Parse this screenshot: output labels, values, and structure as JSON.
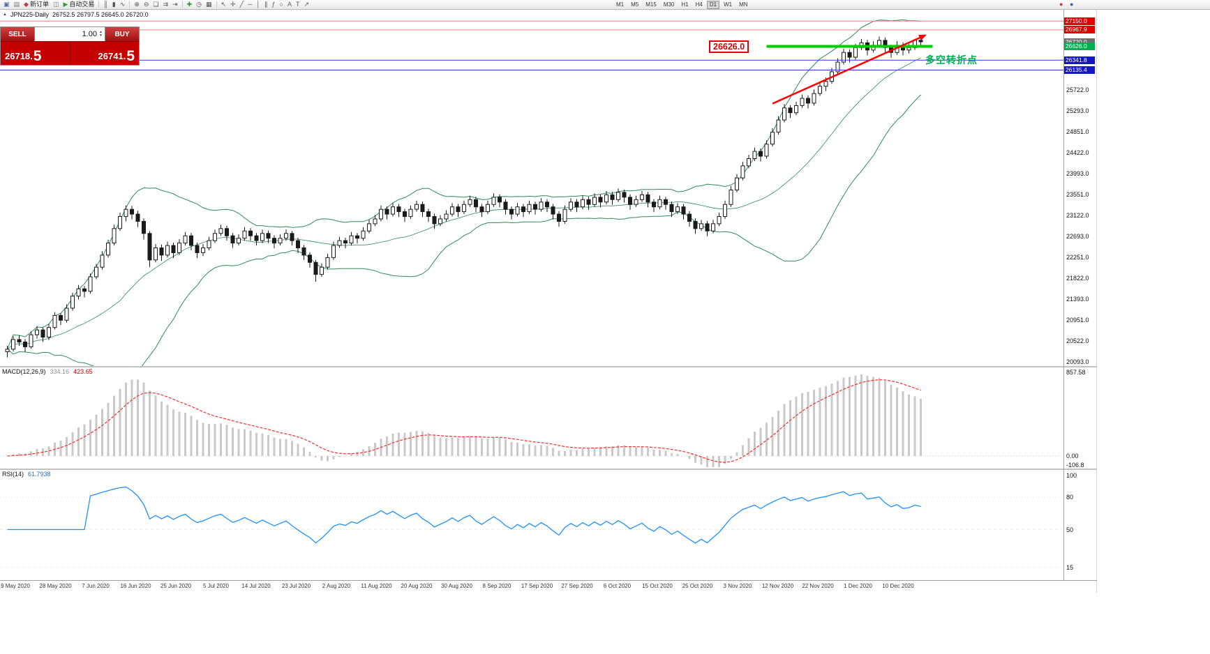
{
  "toolbar": {
    "items": [
      {
        "name": "new-chart-icon",
        "glyph": "▣",
        "color": "#4a6fa5"
      },
      {
        "name": "profiles-icon",
        "glyph": "▤",
        "color": "#777777"
      },
      {
        "name": "new-order-button",
        "glyph": "◆",
        "color": "#cc3333",
        "label": "新订单"
      },
      {
        "name": "charts-group-icon",
        "glyph": "◫",
        "color": "#777777"
      },
      {
        "name": "auto-trading-button",
        "glyph": "▶",
        "color": "#2ea02e",
        "label": "自动交易"
      },
      {
        "name": "separator"
      },
      {
        "name": "bar-chart-icon",
        "glyph": "║",
        "color": "#555555"
      },
      {
        "name": "candlestick-chart-icon",
        "glyph": "▮",
        "color": "#555555"
      },
      {
        "name": "line-chart-icon",
        "glyph": "∿",
        "color": "#555555"
      },
      {
        "name": "separator"
      },
      {
        "name": "zoom-in-icon",
        "glyph": "⊕",
        "color": "#555555"
      },
      {
        "name": "zoom-out-icon",
        "glyph": "⊖",
        "color": "#555555"
      },
      {
        "name": "tile-windows-icon",
        "glyph": "❏",
        "color": "#555555"
      },
      {
        "name": "auto-scroll-icon",
        "glyph": "⇉",
        "color": "#555555"
      },
      {
        "name": "chart-shift-icon",
        "glyph": "⇥",
        "color": "#555555"
      },
      {
        "name": "separator"
      },
      {
        "name": "indicators-icon",
        "glyph": "✚",
        "color": "#1c9e1c"
      },
      {
        "name": "periods-icon",
        "glyph": "◷",
        "color": "#555555"
      },
      {
        "name": "templates-icon",
        "glyph": "▦",
        "color": "#555555"
      },
      {
        "name": "separator"
      },
      {
        "name": "cursor-icon",
        "glyph": "↖",
        "color": "#555555"
      },
      {
        "name": "crosshair-icon",
        "glyph": "✛",
        "color": "#555555"
      },
      {
        "name": "trendline-icon",
        "glyph": "╱",
        "color": "#555555"
      },
      {
        "name": "horizontal-line-icon",
        "glyph": "─",
        "color": "#555555"
      },
      {
        "name": "vertical-line-icon",
        "glyph": "│",
        "color": "#555555"
      },
      {
        "name": "equidistant-channel-icon",
        "glyph": "∥",
        "color": "#555555"
      },
      {
        "name": "fibonacci-icon",
        "glyph": "ƒ",
        "color": "#555555"
      },
      {
        "name": "shapes-icon",
        "glyph": "○",
        "color": "#555555"
      },
      {
        "name": "text-icon",
        "glyph": "A",
        "color": "#555555"
      },
      {
        "name": "text-label-icon",
        "glyph": "T",
        "color": "#555555"
      },
      {
        "name": "arrows-tool-icon",
        "glyph": "↗",
        "color": "#555555"
      }
    ],
    "timeframes": [
      "M1",
      "M5",
      "M15",
      "M30",
      "H1",
      "H4",
      "D1",
      "W1",
      "MN"
    ],
    "active_timeframe": "D1",
    "right_icons": [
      {
        "name": "connection-status-icon",
        "glyph": "●",
        "color": "#d83434"
      },
      {
        "name": "news-indicator-icon",
        "glyph": "●",
        "color": "#3a5bd0"
      }
    ]
  },
  "trade_panel": {
    "sell_label": "SELL",
    "buy_label": "BUY",
    "volume": "1.00",
    "sell_price_base": "26718.",
    "sell_price_last": "5",
    "buy_price_base": "26741.",
    "buy_price_last": "5"
  },
  "chart": {
    "symbol_title": "JPN225-Daily",
    "ohlc": "26752.5 26797.5 26645.0 26720.0",
    "annotation_price": "26626.0",
    "annotation_text": "多空转折点",
    "price_axis": [
      "25722.0",
      "25293.0",
      "24851.0",
      "24422.0",
      "23993.0",
      "23551.0",
      "23122.0",
      "22693.0",
      "22251.0",
      "21822.0",
      "21393.0",
      "20951.0",
      "20522.0",
      "20093.0"
    ],
    "price_tags": [
      {
        "text": "27150.0",
        "price": 27150.0,
        "bg": "#e00000"
      },
      {
        "text": "26967.9",
        "price": 26967.9,
        "bg": "#e00000"
      },
      {
        "text": "26720.0",
        "price": 26720.0,
        "bg": "#6e6e6e"
      },
      {
        "text": "26626.0",
        "price": 26626.0,
        "bg": "#00b050"
      },
      {
        "text": "26341.8",
        "price": 26341.8,
        "bg": "#1515c8"
      },
      {
        "text": "26135.4",
        "price": 26135.4,
        "bg": "#1515c8"
      }
    ],
    "date_axis": [
      "9 May 2020",
      "28 May 2020",
      "7 Jun 2020",
      "16 Jun 2020",
      "25 Jun 2020",
      "5 Jul 2020",
      "14 Jul 2020",
      "23 Jul 2020",
      "2 Aug 2020",
      "11 Aug 2020",
      "20 Aug 2020",
      "30 Aug 2020",
      "8 Sep 2020",
      "17 Sep 2020",
      "27 Sep 2020",
      "6 Oct 2020",
      "15 Oct 2020",
      "25 Oct 2020",
      "3 Nov 2020",
      "12 Nov 2020",
      "22 Nov 2020",
      "1 Dec 2020",
      "10 Dec 2020"
    ]
  },
  "macd": {
    "label": "MACD(12,26,9)",
    "value1": "334.16",
    "value2": "423.65",
    "axis": [
      "857.58",
      "0.00",
      "-106.8"
    ]
  },
  "rsi": {
    "label": "RSI(14)",
    "value": "61.7938",
    "axis": [
      "100",
      "80",
      "50",
      "15"
    ],
    "axis_values": [
      100,
      80,
      50,
      15
    ]
  },
  "chart_data": {
    "type": "candlestick",
    "symbol": "JPN225",
    "timeframe": "Daily",
    "ohlc_last": {
      "open": 26752.5,
      "high": 26797.5,
      "low": 26645.0,
      "close": 26720.0
    },
    "price_range_visible": [
      20093.0,
      27385.0
    ],
    "indicators": {
      "bollinger_period": 20,
      "bollinger_deviation": 2,
      "macd_fast": 12,
      "macd_slow": 26,
      "macd_signal": 9,
      "macd_current": [
        334.16,
        423.65
      ],
      "rsi_period": 14,
      "rsi_current": 61.7938
    },
    "overlays": {
      "horizontal_lines": [
        {
          "price": 27150.0,
          "color": "#f08080",
          "width": 1
        },
        {
          "price": 26967.9,
          "color": "#f08080",
          "width": 1
        },
        {
          "price": 26341.8,
          "color": "#3333e6",
          "width": 1
        },
        {
          "price": 26135.4,
          "color": "#3333e6",
          "width": 1
        }
      ],
      "support_level": {
        "price": 26626.0,
        "color": "#00cc00",
        "width": 4,
        "from_bar": 128,
        "to_bar": 156
      },
      "trend_arrow": {
        "color": "#ff0000",
        "from": {
          "bar": 129,
          "price": 25440
        },
        "to": {
          "bar": 155,
          "price": 26870
        }
      }
    },
    "candles": [
      [
        20300,
        20420,
        20180,
        20350
      ],
      [
        20350,
        20620,
        20300,
        20550
      ],
      [
        20550,
        20640,
        20420,
        20500
      ],
      [
        20500,
        20560,
        20290,
        20400
      ],
      [
        20400,
        20720,
        20360,
        20650
      ],
      [
        20650,
        20830,
        20570,
        20750
      ],
      [
        20750,
        20800,
        20500,
        20600
      ],
      [
        20600,
        20880,
        20540,
        20800
      ],
      [
        20800,
        21120,
        20760,
        21050
      ],
      [
        21050,
        21100,
        20850,
        20950
      ],
      [
        20950,
        21280,
        20900,
        21200
      ],
      [
        21200,
        21520,
        21150,
        21450
      ],
      [
        21450,
        21680,
        21380,
        21600
      ],
      [
        21600,
        21660,
        21420,
        21550
      ],
      [
        21550,
        21920,
        21500,
        21850
      ],
      [
        21850,
        22120,
        21800,
        22050
      ],
      [
        22050,
        22380,
        22000,
        22300
      ],
      [
        22300,
        22620,
        22250,
        22550
      ],
      [
        22550,
        22930,
        22500,
        22850
      ],
      [
        22850,
        23180,
        22800,
        23100
      ],
      [
        23100,
        23330,
        23000,
        23250
      ],
      [
        23250,
        23320,
        23040,
        23150
      ],
      [
        23150,
        23220,
        22880,
        23000
      ],
      [
        23000,
        23060,
        22620,
        22750
      ],
      [
        22750,
        22800,
        22050,
        22200
      ],
      [
        22200,
        22530,
        22150,
        22450
      ],
      [
        22450,
        22520,
        22180,
        22300
      ],
      [
        22300,
        22580,
        22250,
        22500
      ],
      [
        22500,
        22560,
        22240,
        22350
      ],
      [
        22350,
        22630,
        22300,
        22550
      ],
      [
        22550,
        22780,
        22500,
        22700
      ],
      [
        22700,
        22760,
        22400,
        22500
      ],
      [
        22500,
        22560,
        22240,
        22350
      ],
      [
        22350,
        22530,
        22280,
        22450
      ],
      [
        22450,
        22680,
        22400,
        22600
      ],
      [
        22600,
        22830,
        22550,
        22750
      ],
      [
        22750,
        22930,
        22700,
        22850
      ],
      [
        22850,
        22910,
        22600,
        22700
      ],
      [
        22700,
        22760,
        22450,
        22550
      ],
      [
        22550,
        22730,
        22500,
        22650
      ],
      [
        22650,
        22880,
        22600,
        22800
      ],
      [
        22800,
        22860,
        22600,
        22700
      ],
      [
        22700,
        22760,
        22500,
        22600
      ],
      [
        22600,
        22830,
        22550,
        22750
      ],
      [
        22750,
        22810,
        22550,
        22650
      ],
      [
        22650,
        22710,
        22440,
        22550
      ],
      [
        22550,
        22730,
        22500,
        22650
      ],
      [
        22650,
        22830,
        22600,
        22750
      ],
      [
        22750,
        22800,
        22500,
        22600
      ],
      [
        22600,
        22660,
        22340,
        22450
      ],
      [
        22450,
        22510,
        22200,
        22300
      ],
      [
        22300,
        22360,
        22040,
        22150
      ],
      [
        22150,
        22200,
        21750,
        21900
      ],
      [
        21900,
        22130,
        21850,
        22050
      ],
      [
        22050,
        22330,
        22000,
        22250
      ],
      [
        22250,
        22580,
        22200,
        22500
      ],
      [
        22500,
        22680,
        22450,
        22600
      ],
      [
        22600,
        22660,
        22440,
        22550
      ],
      [
        22550,
        22780,
        22500,
        22700
      ],
      [
        22700,
        22760,
        22540,
        22650
      ],
      [
        22650,
        22880,
        22600,
        22800
      ],
      [
        22800,
        23030,
        22750,
        22950
      ],
      [
        22950,
        23130,
        22900,
        23050
      ],
      [
        23050,
        23330,
        23000,
        23250
      ],
      [
        23250,
        23310,
        23040,
        23150
      ],
      [
        23150,
        23380,
        23100,
        23300
      ],
      [
        23300,
        23360,
        23090,
        23200
      ],
      [
        23200,
        23260,
        22990,
        23100
      ],
      [
        23100,
        23330,
        23050,
        23250
      ],
      [
        23250,
        23430,
        23200,
        23350
      ],
      [
        23350,
        23410,
        23090,
        23200
      ],
      [
        23200,
        23260,
        22990,
        23100
      ],
      [
        23100,
        23160,
        22840,
        22950
      ],
      [
        22950,
        23130,
        22900,
        23050
      ],
      [
        23050,
        23230,
        23000,
        23150
      ],
      [
        23150,
        23380,
        23100,
        23300
      ],
      [
        23300,
        23360,
        23090,
        23200
      ],
      [
        23200,
        23430,
        23150,
        23350
      ],
      [
        23350,
        23530,
        23300,
        23450
      ],
      [
        23450,
        23510,
        23190,
        23300
      ],
      [
        23300,
        23360,
        23090,
        23200
      ],
      [
        23200,
        23430,
        23150,
        23350
      ],
      [
        23350,
        23580,
        23300,
        23500
      ],
      [
        23500,
        23560,
        23290,
        23400
      ],
      [
        23400,
        23460,
        23140,
        23250
      ],
      [
        23250,
        23310,
        23040,
        23150
      ],
      [
        23150,
        23380,
        23100,
        23300
      ],
      [
        23300,
        23360,
        23090,
        23200
      ],
      [
        23200,
        23430,
        23150,
        23350
      ],
      [
        23350,
        23410,
        23140,
        23250
      ],
      [
        23250,
        23480,
        23200,
        23400
      ],
      [
        23400,
        23460,
        23190,
        23300
      ],
      [
        23300,
        23360,
        23040,
        23150
      ],
      [
        23150,
        23210,
        22890,
        23000
      ],
      [
        23000,
        23330,
        22950,
        23250
      ],
      [
        23250,
        23480,
        23200,
        23400
      ],
      [
        23400,
        23460,
        23190,
        23300
      ],
      [
        23300,
        23530,
        23250,
        23450
      ],
      [
        23450,
        23510,
        23240,
        23350
      ],
      [
        23350,
        23580,
        23300,
        23500
      ],
      [
        23500,
        23560,
        23290,
        23400
      ],
      [
        23400,
        23630,
        23350,
        23550
      ],
      [
        23550,
        23610,
        23340,
        23450
      ],
      [
        23450,
        23680,
        23400,
        23600
      ],
      [
        23600,
        23660,
        23390,
        23500
      ],
      [
        23500,
        23560,
        23240,
        23350
      ],
      [
        23350,
        23530,
        23300,
        23450
      ],
      [
        23450,
        23630,
        23400,
        23550
      ],
      [
        23550,
        23610,
        23290,
        23400
      ],
      [
        23400,
        23460,
        23190,
        23300
      ],
      [
        23300,
        23530,
        23250,
        23450
      ],
      [
        23450,
        23510,
        23240,
        23350
      ],
      [
        23350,
        23410,
        23090,
        23200
      ],
      [
        23200,
        23380,
        23150,
        23300
      ],
      [
        23300,
        23360,
        23040,
        23150
      ],
      [
        23150,
        23210,
        22890,
        23000
      ],
      [
        23000,
        23060,
        22740,
        22850
      ],
      [
        22850,
        23030,
        22800,
        22950
      ],
      [
        22950,
        23010,
        22690,
        22800
      ],
      [
        22800,
        23030,
        22750,
        22950
      ],
      [
        22950,
        23180,
        22900,
        23100
      ],
      [
        23100,
        23430,
        23050,
        23350
      ],
      [
        23350,
        23730,
        23300,
        23650
      ],
      [
        23650,
        23980,
        23600,
        23900
      ],
      [
        23900,
        24230,
        23850,
        24150
      ],
      [
        24150,
        24380,
        24100,
        24300
      ],
      [
        24300,
        24530,
        24250,
        24450
      ],
      [
        24450,
        24510,
        24240,
        24350
      ],
      [
        24350,
        24680,
        24300,
        24600
      ],
      [
        24600,
        24930,
        24550,
        24850
      ],
      [
        24850,
        25180,
        24800,
        25100
      ],
      [
        25100,
        25430,
        25050,
        25350
      ],
      [
        25350,
        25410,
        25140,
        25250
      ],
      [
        25250,
        25480,
        25200,
        25400
      ],
      [
        25400,
        25630,
        25350,
        25550
      ],
      [
        25550,
        25610,
        25340,
        25450
      ],
      [
        25450,
        25730,
        25400,
        25650
      ],
      [
        25650,
        25880,
        25600,
        25800
      ],
      [
        25800,
        25980,
        25700,
        25900
      ],
      [
        25900,
        26180,
        25850,
        26100
      ],
      [
        26100,
        26380,
        26050,
        26300
      ],
      [
        26300,
        26580,
        26250,
        26500
      ],
      [
        26500,
        26560,
        26290,
        26400
      ],
      [
        26400,
        26680,
        26350,
        26600
      ],
      [
        26600,
        26780,
        26550,
        26700
      ],
      [
        26700,
        26760,
        26440,
        26550
      ],
      [
        26550,
        26730,
        26500,
        26650
      ],
      [
        26650,
        26830,
        26600,
        26750
      ],
      [
        26750,
        26810,
        26490,
        26600
      ],
      [
        26600,
        26660,
        26390,
        26500
      ],
      [
        26500,
        26730,
        26450,
        26650
      ],
      [
        26650,
        26710,
        26440,
        26550
      ],
      [
        26550,
        26680,
        26480,
        26600
      ],
      [
        26600,
        26780,
        26550,
        26750
      ],
      [
        26752.5,
        26797.5,
        26645,
        26720
      ]
    ]
  }
}
